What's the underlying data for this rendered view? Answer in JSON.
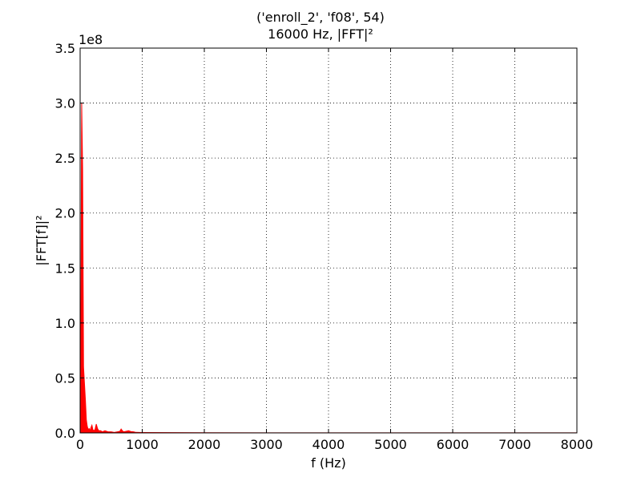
{
  "chart_data": {
    "type": "area",
    "title": "('enroll_2', 'f08', 54)",
    "subtitle": "16000 Hz, |FFT|²",
    "xlabel": "f (Hz)",
    "ylabel": "|FFT[f]|²",
    "y_multiplier_label": "1e8",
    "xlim": [
      0,
      8000
    ],
    "ylim": [
      0,
      3.5
    ],
    "x_ticks": [
      0,
      1000,
      2000,
      3000,
      4000,
      5000,
      6000,
      7000,
      8000
    ],
    "x_tick_labels": [
      "0",
      "1000",
      "2000",
      "3000",
      "4000",
      "5000",
      "6000",
      "7000",
      "8000"
    ],
    "y_ticks": [
      0.0,
      0.5,
      1.0,
      1.5,
      2.0,
      2.5,
      3.0,
      3.5
    ],
    "y_tick_labels": [
      "0.0",
      "0.5",
      "1.0",
      "1.5",
      "2.0",
      "2.5",
      "3.0",
      "3.5"
    ],
    "grid": true,
    "series": [
      {
        "color": "#ff0000",
        "x": [
          0,
          12,
          25,
          40,
          55,
          70,
          85,
          100,
          115,
          130,
          145,
          160,
          175,
          190,
          205,
          220,
          240,
          260,
          280,
          300,
          330,
          360,
          400,
          450,
          500,
          550,
          600,
          640,
          660,
          680,
          700,
          740,
          780,
          820,
          860,
          900,
          1000,
          1500,
          2000,
          3000,
          4000,
          5000,
          6000,
          7000,
          8000
        ],
        "y": [
          0.0,
          1.0,
          3.0,
          2.4,
          0.6,
          0.45,
          0.3,
          0.12,
          0.06,
          0.03,
          0.04,
          0.02,
          0.05,
          0.07,
          0.03,
          0.02,
          0.03,
          0.08,
          0.04,
          0.02,
          0.02,
          0.01,
          0.02,
          0.01,
          0.01,
          0.005,
          0.01,
          0.015,
          0.035,
          0.02,
          0.01,
          0.015,
          0.02,
          0.012,
          0.01,
          0.005,
          0.004,
          0.003,
          0.002,
          0.001,
          0.001,
          0.001,
          0.001,
          0.001,
          0.001
        ]
      }
    ]
  }
}
